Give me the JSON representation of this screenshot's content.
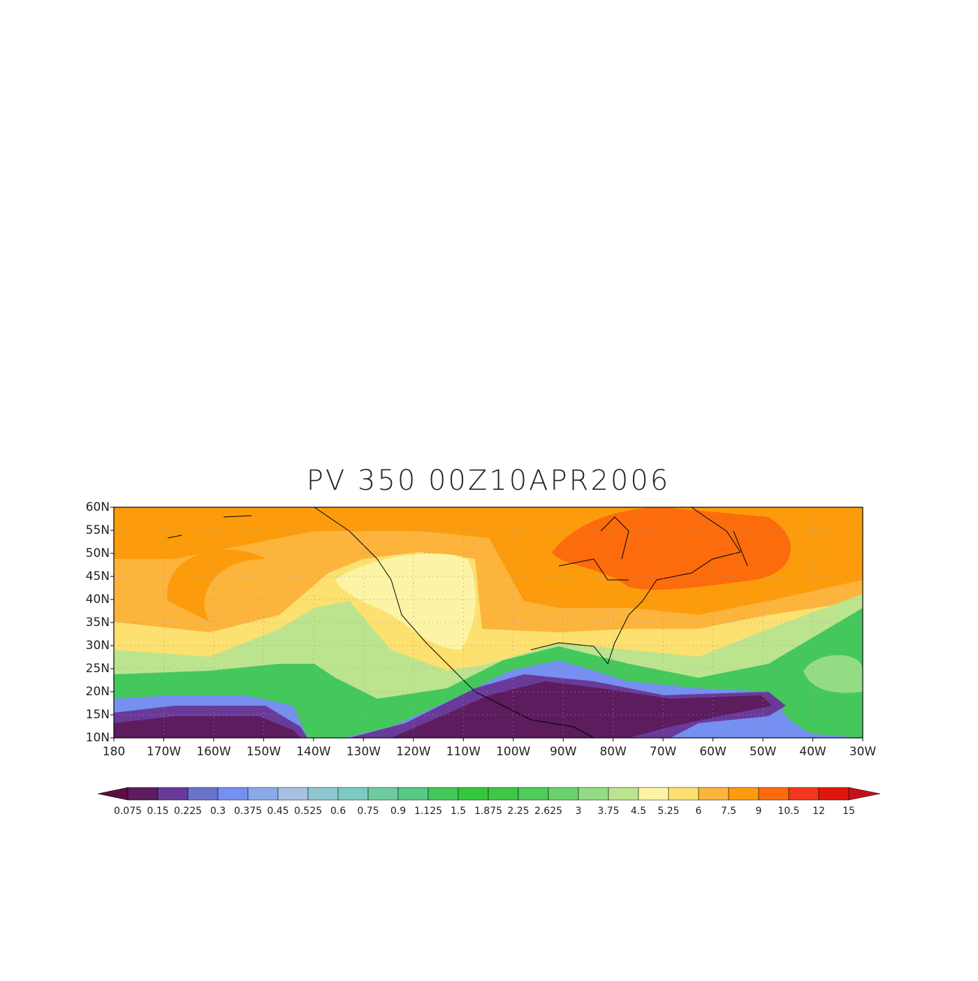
{
  "title": "PV 350 00Z10APR2006",
  "map": {
    "lat_labels": [
      "60N",
      "55N",
      "50N",
      "45N",
      "40N",
      "35N",
      "30N",
      "25N",
      "20N",
      "15N",
      "10N"
    ],
    "lon_labels": [
      "180",
      "170W",
      "160W",
      "150W",
      "140W",
      "130W",
      "120W",
      "110W",
      "100W",
      "90W",
      "80W",
      "70W",
      "60W",
      "50W",
      "40W",
      "30W"
    ]
  },
  "colorbar": {
    "labels": [
      "0.075",
      "0.15",
      "0.225",
      "0.3",
      "0.375",
      "0.45",
      "0.525",
      "0.6",
      "0.75",
      "0.9",
      "1.125",
      "1.5",
      "1.875",
      "2.25",
      "2.625",
      "3",
      "3.75",
      "4.5",
      "5.25",
      "6",
      "7.5",
      "9",
      "10.5",
      "12",
      "15"
    ],
    "colors": [
      "#5a0f45",
      "#5c1c5e",
      "#6a3a9a",
      "#6b72cc",
      "#7590f0",
      "#8aaae8",
      "#a6c2e0",
      "#8ec6d0",
      "#7ccac0",
      "#6ecaa0",
      "#58c884",
      "#44c85c",
      "#36c83c",
      "#3ec846",
      "#50cc5a",
      "#6ad26a",
      "#94dc84",
      "#bce48e",
      "#fcf4a4",
      "#fce070",
      "#fcb43c",
      "#fc9c0c",
      "#fc6c0c",
      "#f4361a",
      "#e0160e",
      "#c8101a"
    ]
  }
}
